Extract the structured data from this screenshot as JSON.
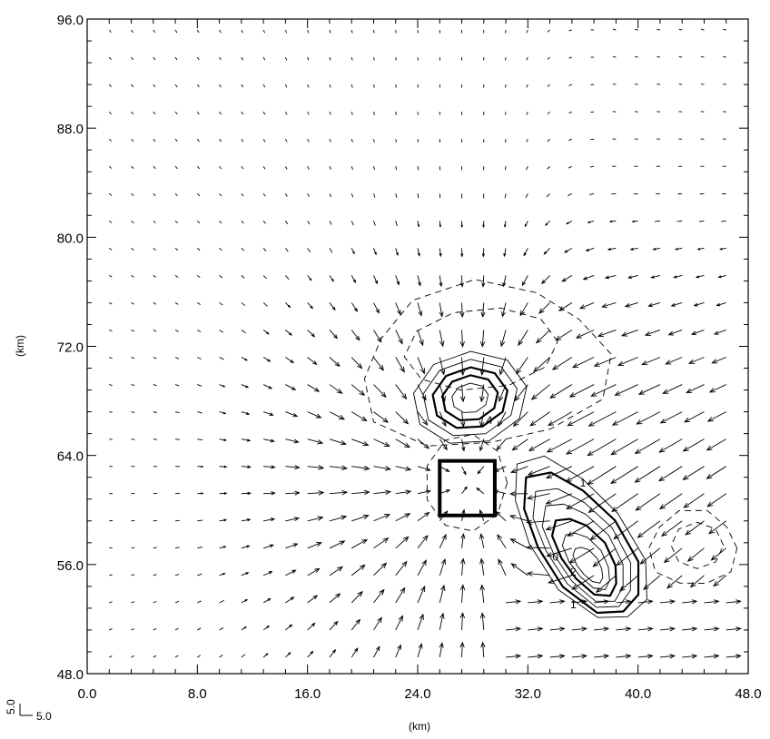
{
  "chart_data": {
    "type": "vector-field-contour",
    "xlabel": "(km)",
    "ylabel": "(km)",
    "xlim": [
      0.0,
      48.0
    ],
    "ylim": [
      48.0,
      96.0
    ],
    "x_ticks": [
      "0.0",
      "8.0",
      "16.0",
      "24.0",
      "32.0",
      "40.0",
      "48.0"
    ],
    "y_ticks": [
      "48.0",
      "56.0",
      "64.0",
      "72.0",
      "80.0",
      "88.0",
      "96.0"
    ],
    "reference_vector": {
      "u_label": "5.0",
      "v_label": "5.0"
    },
    "contour_labels": [
      {
        "text": "0",
        "x": 34.0,
        "y": 56.3
      },
      {
        "text": "1",
        "x": 35.3,
        "y": 52.8
      },
      {
        "text": "2",
        "x": 35.3,
        "y": 55.2
      },
      {
        "text": "4",
        "x": 29.2,
        "y": 66.3
      },
      {
        "text": "1",
        "x": 36.0,
        "y": 61.7
      }
    ],
    "highlight_box": {
      "x0": 25.6,
      "x1": 29.6,
      "y0": 59.6,
      "y1": 63.6
    },
    "positive_centers": [
      {
        "x": 27.8,
        "y": 68.2,
        "levels": 5
      },
      {
        "x": 36.2,
        "y": 56.2,
        "levels": 7
      }
    ],
    "negative_regions": 3,
    "arrow_grid": {
      "dx": 1.6,
      "dy": 2.0
    }
  }
}
